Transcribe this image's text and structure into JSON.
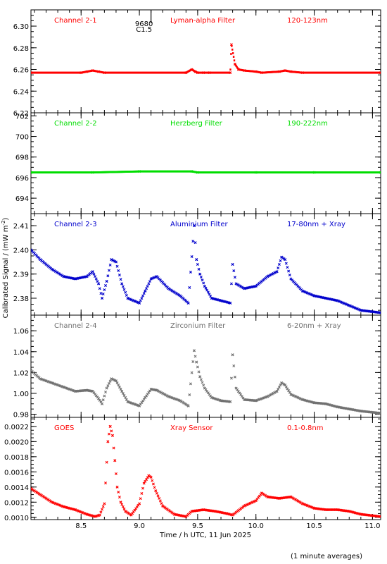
{
  "figure": {
    "ylabel_main": "Calibrated Signal / (mW m",
    "ylabel_exp": "-2",
    "ylabel_close": ")",
    "xlabel": "Time / h UTC, 11 Jun 2025",
    "footnote": "(1 minute averages)",
    "flare_marker": {
      "number": "9680",
      "class": "C1.5",
      "time": 9.1
    }
  },
  "chart_data": [
    {
      "type": "scatter",
      "channel": "Channel 2-1",
      "filter": "Lyman-alpha Filter",
      "band": "120-123nm",
      "color": "#ff0000",
      "xlim": [
        8.07,
        11.07
      ],
      "ylim": [
        6.22,
        6.315
      ],
      "yticks": [
        "6.22",
        "6.24",
        "6.26",
        "6.28",
        "6.30"
      ],
      "series": [
        {
          "x": [
            8.07,
            8.5,
            8.55,
            8.6,
            8.65,
            8.7,
            9.4,
            9.45,
            9.48,
            9.5,
            9.55,
            9.6,
            9.78,
            9.79,
            9.82,
            9.85,
            9.9,
            10.0,
            10.05,
            10.2,
            10.25,
            10.3,
            10.4,
            11.07
          ],
          "y": [
            6.257,
            6.257,
            6.258,
            6.259,
            6.258,
            6.257,
            6.257,
            6.26,
            6.258,
            6.257,
            6.257,
            6.257,
            6.257,
            6.283,
            6.265,
            6.26,
            6.259,
            6.258,
            6.257,
            6.258,
            6.259,
            6.258,
            6.257,
            6.257
          ]
        }
      ]
    },
    {
      "type": "scatter",
      "channel": "Channel 2-2",
      "filter": "Herzberg Filter",
      "band": "190-222nm",
      "color": "#00dd00",
      "xlim": [
        8.07,
        11.07
      ],
      "ylim": [
        692.5,
        702.3
      ],
      "yticks": [
        "694",
        "696",
        "698",
        "700",
        "702"
      ],
      "series": [
        {
          "x": [
            8.07,
            8.6,
            9.0,
            9.45,
            9.5,
            10.0,
            10.5,
            11.07
          ],
          "y": [
            696.5,
            696.5,
            696.6,
            696.6,
            696.5,
            696.5,
            696.5,
            696.5
          ]
        }
      ]
    },
    {
      "type": "scatter",
      "channel": "Channel 2-3",
      "filter": "Aluminium Filter",
      "band": "17-80nm + Xray",
      "color": "#0000cc",
      "xlim": [
        8.07,
        11.07
      ],
      "ylim": [
        2.373,
        2.415
      ],
      "yticks": [
        "2.38",
        "2.39",
        "2.40",
        "2.41"
      ],
      "series": [
        {
          "x": [
            8.07,
            8.15,
            8.25,
            8.35,
            8.45,
            8.55,
            8.6,
            8.65,
            8.68,
            8.72,
            8.76,
            8.8,
            8.85,
            8.9,
            9.0,
            9.05,
            9.1,
            9.15,
            9.25,
            9.35,
            9.42,
            9.47,
            9.49,
            9.52,
            9.56,
            9.62,
            9.7,
            9.78,
            9.8,
            9.83,
            9.9,
            10.0,
            10.1,
            10.18,
            10.22,
            10.25,
            10.3,
            10.4,
            10.5,
            10.6,
            10.7,
            10.8,
            10.9,
            11.07
          ],
          "y": [
            2.4,
            2.396,
            2.392,
            2.389,
            2.388,
            2.389,
            2.391,
            2.386,
            2.38,
            2.387,
            2.396,
            2.395,
            2.386,
            2.38,
            2.378,
            2.383,
            2.388,
            2.389,
            2.384,
            2.381,
            2.378,
            2.41,
            2.396,
            2.39,
            2.385,
            2.38,
            2.379,
            2.378,
            2.394,
            2.386,
            2.384,
            2.385,
            2.389,
            2.391,
            2.397,
            2.396,
            2.388,
            2.383,
            2.381,
            2.38,
            2.379,
            2.377,
            2.375,
            2.374
          ]
        }
      ]
    },
    {
      "type": "scatter",
      "channel": "Channel 2-4",
      "filter": "Zirconium Filter",
      "band": "6-20nm + Xray",
      "color": "#707070",
      "xlim": [
        8.07,
        11.07
      ],
      "ylim": [
        0.977,
        1.075
      ],
      "yticks": [
        "0.98",
        "1.00",
        "1.02",
        "1.04",
        "1.06"
      ],
      "series": [
        {
          "x": [
            8.07,
            8.15,
            8.25,
            8.35,
            8.45,
            8.55,
            8.6,
            8.65,
            8.68,
            8.72,
            8.76,
            8.8,
            8.85,
            8.9,
            9.0,
            9.05,
            9.1,
            9.15,
            9.25,
            9.35,
            9.42,
            9.47,
            9.49,
            9.52,
            9.56,
            9.62,
            9.7,
            9.78,
            9.8,
            9.83,
            9.9,
            10.0,
            10.1,
            10.18,
            10.22,
            10.25,
            10.3,
            10.4,
            10.5,
            10.6,
            10.7,
            10.8,
            10.9,
            11.07
          ],
          "y": [
            1.022,
            1.014,
            1.01,
            1.006,
            1.002,
            1.003,
            1.002,
            0.995,
            0.99,
            1.005,
            1.014,
            1.012,
            1.002,
            0.992,
            0.988,
            0.996,
            1.004,
            1.003,
            0.997,
            0.993,
            0.988,
            1.041,
            1.03,
            1.016,
            1.005,
            0.996,
            0.993,
            0.992,
            1.037,
            1.005,
            0.994,
            0.993,
            0.997,
            1.002,
            1.01,
            1.008,
            0.999,
            0.994,
            0.991,
            0.99,
            0.987,
            0.985,
            0.983,
            0.981
          ]
        }
      ]
    },
    {
      "type": "scatter",
      "channel": "GOES",
      "filter": "Xray Sensor",
      "band": "0.1-0.8nm",
      "color": "#ff0000",
      "xlim": [
        8.07,
        11.07
      ],
      "ylim": [
        0.00097,
        0.00232
      ],
      "yticks": [
        "0.0010",
        "0.0012",
        "0.0014",
        "0.0016",
        "0.0018",
        "0.0020",
        "0.0022"
      ],
      "series": [
        {
          "x": [
            8.07,
            8.15,
            8.25,
            8.35,
            8.45,
            8.55,
            8.62,
            8.66,
            8.7,
            8.73,
            8.75,
            8.77,
            8.79,
            8.81,
            8.84,
            8.88,
            8.93,
            9.0,
            9.04,
            9.08,
            9.1,
            9.14,
            9.2,
            9.3,
            9.4,
            9.45,
            9.55,
            9.65,
            9.75,
            9.8,
            9.9,
            10.0,
            10.05,
            10.1,
            10.2,
            10.3,
            10.4,
            10.5,
            10.6,
            10.7,
            10.8,
            10.9,
            11.07
          ],
          "y": [
            0.00138,
            0.0013,
            0.0012,
            0.00114,
            0.0011,
            0.00104,
            0.00101,
            0.00103,
            0.00118,
            0.002,
            0.0022,
            0.00208,
            0.00175,
            0.0014,
            0.0012,
            0.00108,
            0.00103,
            0.00118,
            0.00145,
            0.00155,
            0.00153,
            0.00135,
            0.00115,
            0.00104,
            0.00101,
            0.00108,
            0.0011,
            0.00108,
            0.00105,
            0.00103,
            0.00115,
            0.00122,
            0.00132,
            0.00127,
            0.00125,
            0.00127,
            0.00118,
            0.00112,
            0.0011,
            0.0011,
            0.00108,
            0.00104,
            0.00101
          ]
        }
      ]
    }
  ],
  "xticks": [
    "8.5",
    "9.0",
    "9.5",
    "10.0",
    "10.5",
    "11.0"
  ],
  "xtick_values": [
    8.5,
    9.0,
    9.5,
    10.0,
    10.5,
    11.0
  ]
}
